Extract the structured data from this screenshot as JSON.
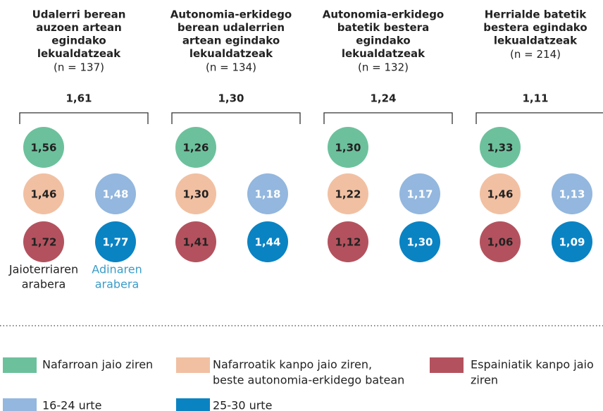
{
  "groups": [
    {
      "title_lines": [
        "Udalerri berean",
        "auzoen artean",
        "egindako",
        "lekualdatzeak"
      ],
      "n": "(n = 137)",
      "total": "1,61",
      "birth": [
        "1,56",
        "1,46",
        "1,72"
      ],
      "age": [
        "1,48",
        "1,77"
      ]
    },
    {
      "title_lines": [
        "Autonomia-erkidego",
        "berean udalerrien",
        "artean egindako",
        "lekualdatzeak"
      ],
      "n": "(n = 134)",
      "total": "1,30",
      "birth": [
        "1,26",
        "1,30",
        "1,41"
      ],
      "age": [
        "1,18",
        "1,44"
      ]
    },
    {
      "title_lines": [
        "Autonomia-erkidego",
        "batetik bestera",
        "egindako",
        "lekualdatzeak"
      ],
      "n": "(n = 132)",
      "total": "1,24",
      "birth": [
        "1,30",
        "1,22",
        "1,12"
      ],
      "age": [
        "1,17",
        "1,30"
      ]
    },
    {
      "title_lines": [
        "Herrialde batetik",
        "bestera egindako",
        "lekualdatzeak"
      ],
      "n": "(n = 214)",
      "total": "1,11",
      "birth": [
        "1,33",
        "1,46",
        "1,06"
      ],
      "age": [
        "1,13",
        "1,09"
      ]
    }
  ],
  "axis_labels": {
    "birth": [
      "Jaioterriaren",
      "arabera"
    ],
    "age": [
      "Adinaren",
      "arabera"
    ]
  },
  "colors": {
    "birth": [
      "#6cc19c",
      "#f1c0a2",
      "#b3525e"
    ],
    "age": [
      "#93b7de",
      "#0a83c3"
    ],
    "age_label": "#3a9cc9"
  },
  "legend": [
    {
      "label_lines": [
        "Nafarroan jaio ziren"
      ],
      "color": "#6cc19c"
    },
    {
      "label_lines": [
        "Nafarroatik kanpo jaio ziren,",
        "beste autonomia-erkidego batean"
      ],
      "color": "#f1c0a2"
    },
    {
      "label_lines": [
        "Espainiatik kanpo jaio",
        "ziren"
      ],
      "color": "#b3525e"
    },
    {
      "label_lines": [
        "16-24 urte"
      ],
      "color": "#93b7de"
    },
    {
      "label_lines": [
        "25-30 urte"
      ],
      "color": "#0a83c3"
    }
  ]
}
